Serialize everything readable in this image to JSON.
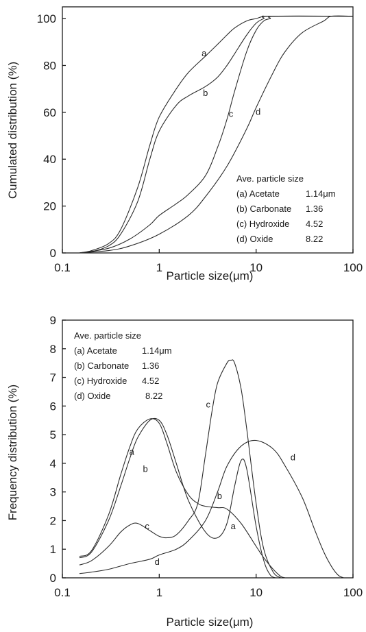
{
  "chart_data": [
    {
      "type": "line",
      "x_scale": "log",
      "xlim": [
        0.1,
        100
      ],
      "ylim": [
        0,
        105
      ],
      "x_ticks": [
        "0.1",
        "1",
        "10",
        "100"
      ],
      "y_ticks": [
        "0",
        "20",
        "40",
        "60",
        "80",
        "100"
      ],
      "xlabel": "Particle size(μm)",
      "ylabel": "Cumulated distribution (%)",
      "legend": {
        "title": "Ave. particle size",
        "rows": [
          {
            "label": "(a) Acetate",
            "value": "1.14μm"
          },
          {
            "label": "(b) Carbonate",
            "value": "1.36"
          },
          {
            "label": "(c) Hydroxide",
            "value": "4.52"
          },
          {
            "label": "(d) Oxide",
            "value": "8.22"
          }
        ]
      },
      "series": [
        {
          "name": "a",
          "x": [
            0.15,
            0.2,
            0.3,
            0.4,
            0.6,
            0.8,
            1,
            1.5,
            2,
            3,
            4,
            5,
            6,
            8,
            10,
            12,
            14,
            100
          ],
          "y": [
            0,
            1,
            4,
            10,
            28,
            46,
            58,
            70,
            77,
            84,
            89,
            93,
            96,
            99,
            100,
            101,
            101,
            101
          ]
        },
        {
          "name": "b",
          "x": [
            0.15,
            0.2,
            0.3,
            0.4,
            0.6,
            0.8,
            1,
            1.5,
            2,
            3,
            4,
            5,
            6,
            8,
            10,
            12,
            14,
            100
          ],
          "y": [
            0,
            0.5,
            3,
            8,
            22,
            40,
            52,
            63,
            67,
            71,
            75,
            80,
            85,
            93,
            98,
            100,
            101,
            101
          ]
        },
        {
          "name": "c",
          "x": [
            0.15,
            0.3,
            0.5,
            0.8,
            1,
            1.5,
            2,
            3,
            4,
            5,
            6,
            8,
            10,
            12,
            14,
            16,
            100
          ],
          "y": [
            0,
            2,
            6,
            12,
            16,
            21,
            25,
            33,
            45,
            57,
            69,
            86,
            95,
            99,
            100,
            101,
            101
          ]
        },
        {
          "name": "d",
          "x": [
            0.15,
            0.3,
            0.5,
            1,
            2,
            3,
            5,
            8,
            10,
            15,
            20,
            30,
            50,
            60,
            100
          ],
          "y": [
            0,
            1,
            3,
            8,
            16,
            24,
            37,
            53,
            62,
            77,
            86,
            94,
            99,
            101,
            101
          ]
        }
      ],
      "curve_labels": [
        {
          "text": "a",
          "x": 2.9,
          "y": 84
        },
        {
          "text": "b",
          "x": 3.0,
          "y": 67
        },
        {
          "text": "c",
          "x": 5.5,
          "y": 58
        },
        {
          "text": "d",
          "x": 10.5,
          "y": 59
        }
      ]
    },
    {
      "type": "line",
      "x_scale": "log",
      "xlim": [
        0.1,
        100
      ],
      "ylim": [
        0,
        9
      ],
      "x_ticks": [
        "0.1",
        "1",
        "10",
        "100"
      ],
      "y_ticks": [
        "0",
        "1",
        "2",
        "3",
        "4",
        "5",
        "6",
        "7",
        "8",
        "9"
      ],
      "xlabel": "Particle size(μm)",
      "ylabel": "Frequency distribution (%)",
      "legend": {
        "title": "Ave. particle size",
        "rows": [
          {
            "label": "(a) Acetate",
            "value": "1.14μm"
          },
          {
            "label": "(b) Carbonate",
            "value": "1.36"
          },
          {
            "label": "(c) Hydroxide",
            "value": "4.52"
          },
          {
            "label": "(d) Oxide",
            "value": "8.22"
          }
        ]
      },
      "series": [
        {
          "name": "a",
          "x": [
            0.15,
            0.2,
            0.3,
            0.4,
            0.5,
            0.6,
            0.8,
            1,
            1.2,
            1.5,
            2,
            2.5,
            3,
            4,
            5,
            7,
            10,
            12,
            15,
            18,
            20
          ],
          "y": [
            0.75,
            0.95,
            2.2,
            3.6,
            4.6,
            5.2,
            5.55,
            5.4,
            4.7,
            3.7,
            2.9,
            2.6,
            2.5,
            2.45,
            2.4,
            1.9,
            1.1,
            0.7,
            0.3,
            0.05,
            0
          ]
        },
        {
          "name": "b",
          "x": [
            0.15,
            0.2,
            0.3,
            0.4,
            0.5,
            0.6,
            0.8,
            1,
            1.2,
            1.5,
            2,
            3,
            4,
            5,
            6,
            7,
            8,
            10,
            12,
            14,
            16
          ],
          "y": [
            0.7,
            0.9,
            2.0,
            3.2,
            4.2,
            4.9,
            5.5,
            5.5,
            5.0,
            4.0,
            2.7,
            1.6,
            1.4,
            1.9,
            3.2,
            4.1,
            3.8,
            1.8,
            0.6,
            0.1,
            0
          ]
        },
        {
          "name": "c",
          "x": [
            0.15,
            0.2,
            0.3,
            0.4,
            0.5,
            0.6,
            0.8,
            1,
            1.2,
            1.5,
            2,
            2.5,
            3,
            3.5,
            4,
            5,
            5.5,
            6,
            7,
            8,
            10,
            12,
            15,
            18
          ],
          "y": [
            0.45,
            0.6,
            1.1,
            1.6,
            1.85,
            1.9,
            1.65,
            1.45,
            1.4,
            1.5,
            2.0,
            2.6,
            4.3,
            5.8,
            6.8,
            7.5,
            7.6,
            7.5,
            6.6,
            5.2,
            2.6,
            1.0,
            0.2,
            0
          ]
        },
        {
          "name": "d",
          "x": [
            0.15,
            0.2,
            0.3,
            0.5,
            0.8,
            1,
            1.5,
            2,
            3,
            4,
            5,
            7,
            10,
            15,
            20,
            30,
            40,
            50,
            60,
            70,
            80
          ],
          "y": [
            0.15,
            0.2,
            0.3,
            0.5,
            0.65,
            0.8,
            1.0,
            1.3,
            2.0,
            3.0,
            3.9,
            4.6,
            4.8,
            4.5,
            3.9,
            2.8,
            1.7,
            0.9,
            0.4,
            0.1,
            0
          ]
        }
      ],
      "curve_labels": [
        {
          "text": "a",
          "x": 0.52,
          "y": 4.3
        },
        {
          "text": "b",
          "x": 0.72,
          "y": 3.7
        },
        {
          "text": "c",
          "x": 0.75,
          "y": 1.7
        },
        {
          "text": "d",
          "x": 0.95,
          "y": 0.45
        },
        {
          "text": "c",
          "x": 3.2,
          "y": 5.95
        },
        {
          "text": "b",
          "x": 4.2,
          "y": 2.75
        },
        {
          "text": "a",
          "x": 5.8,
          "y": 1.7
        },
        {
          "text": "d",
          "x": 24,
          "y": 4.1
        }
      ]
    }
  ]
}
